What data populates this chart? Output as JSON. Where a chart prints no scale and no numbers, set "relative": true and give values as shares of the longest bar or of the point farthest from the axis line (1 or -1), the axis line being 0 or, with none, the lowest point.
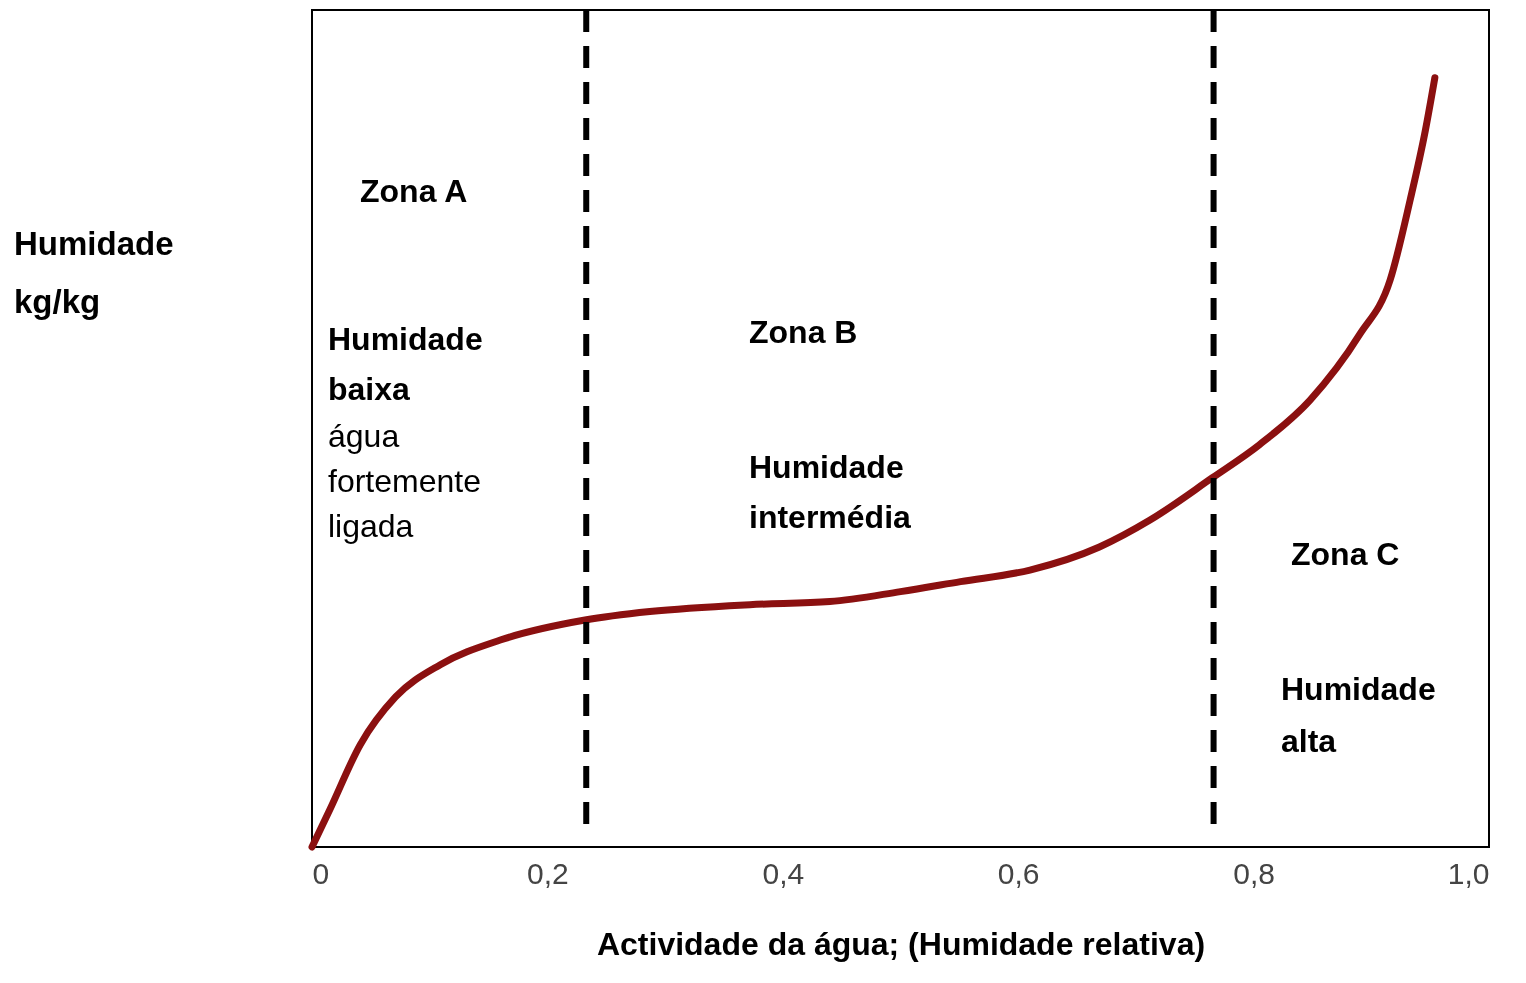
{
  "chart_data": {
    "type": "line",
    "relative": true,
    "xlabel": "Actividade da água; (Humidade relativa)",
    "ylabel": "Humidade\nkg/kg",
    "x": [
      0,
      0.015,
      0.041,
      0.071,
      0.109,
      0.16,
      0.232,
      0.287,
      0.372,
      0.44,
      0.5,
      0.551,
      0.61,
      0.669,
      0.712,
      0.765,
      0.805,
      0.848,
      0.89,
      0.916,
      0.933,
      0.946,
      0.954
    ],
    "series": [
      {
        "color": "#8b1010",
        "values": [
          0,
          0.048,
          0.133,
          0.195,
          0.237,
          0.269,
          0.295,
          0.306,
          0.315,
          0.319,
          0.332,
          0.345,
          0.36,
          0.39,
          0.425,
          0.48,
          0.523,
          0.581,
          0.666,
          0.737,
          0.841,
          0.932,
          1.0
        ]
      }
    ],
    "xlim": [
      0,
      1.0
    ],
    "xticks": [
      {
        "value": 0,
        "label": "0"
      },
      {
        "value": 0.2,
        "label": "0,2"
      },
      {
        "value": 0.4,
        "label": "0,4"
      },
      {
        "value": 0.6,
        "label": "0,6"
      },
      {
        "value": 0.8,
        "label": "0,8"
      },
      {
        "value": 1.0,
        "label": "1,0"
      }
    ],
    "ref_lines": [
      {
        "axis": "x",
        "value": 0.233,
        "color": "#000000",
        "line_style": "dashed"
      },
      {
        "axis": "x",
        "value": 0.766,
        "color": "#000000",
        "line_style": "dashed"
      }
    ],
    "annotations": [
      "Zona A",
      "Humidade\n baixa",
      "água\nfortemente\nligada",
      "Zona B",
      "Humidade\nintermédia",
      "Zona C",
      "Humidade\nalta"
    ],
    "grid": false,
    "marker": "none",
    "line_style": "solid"
  }
}
